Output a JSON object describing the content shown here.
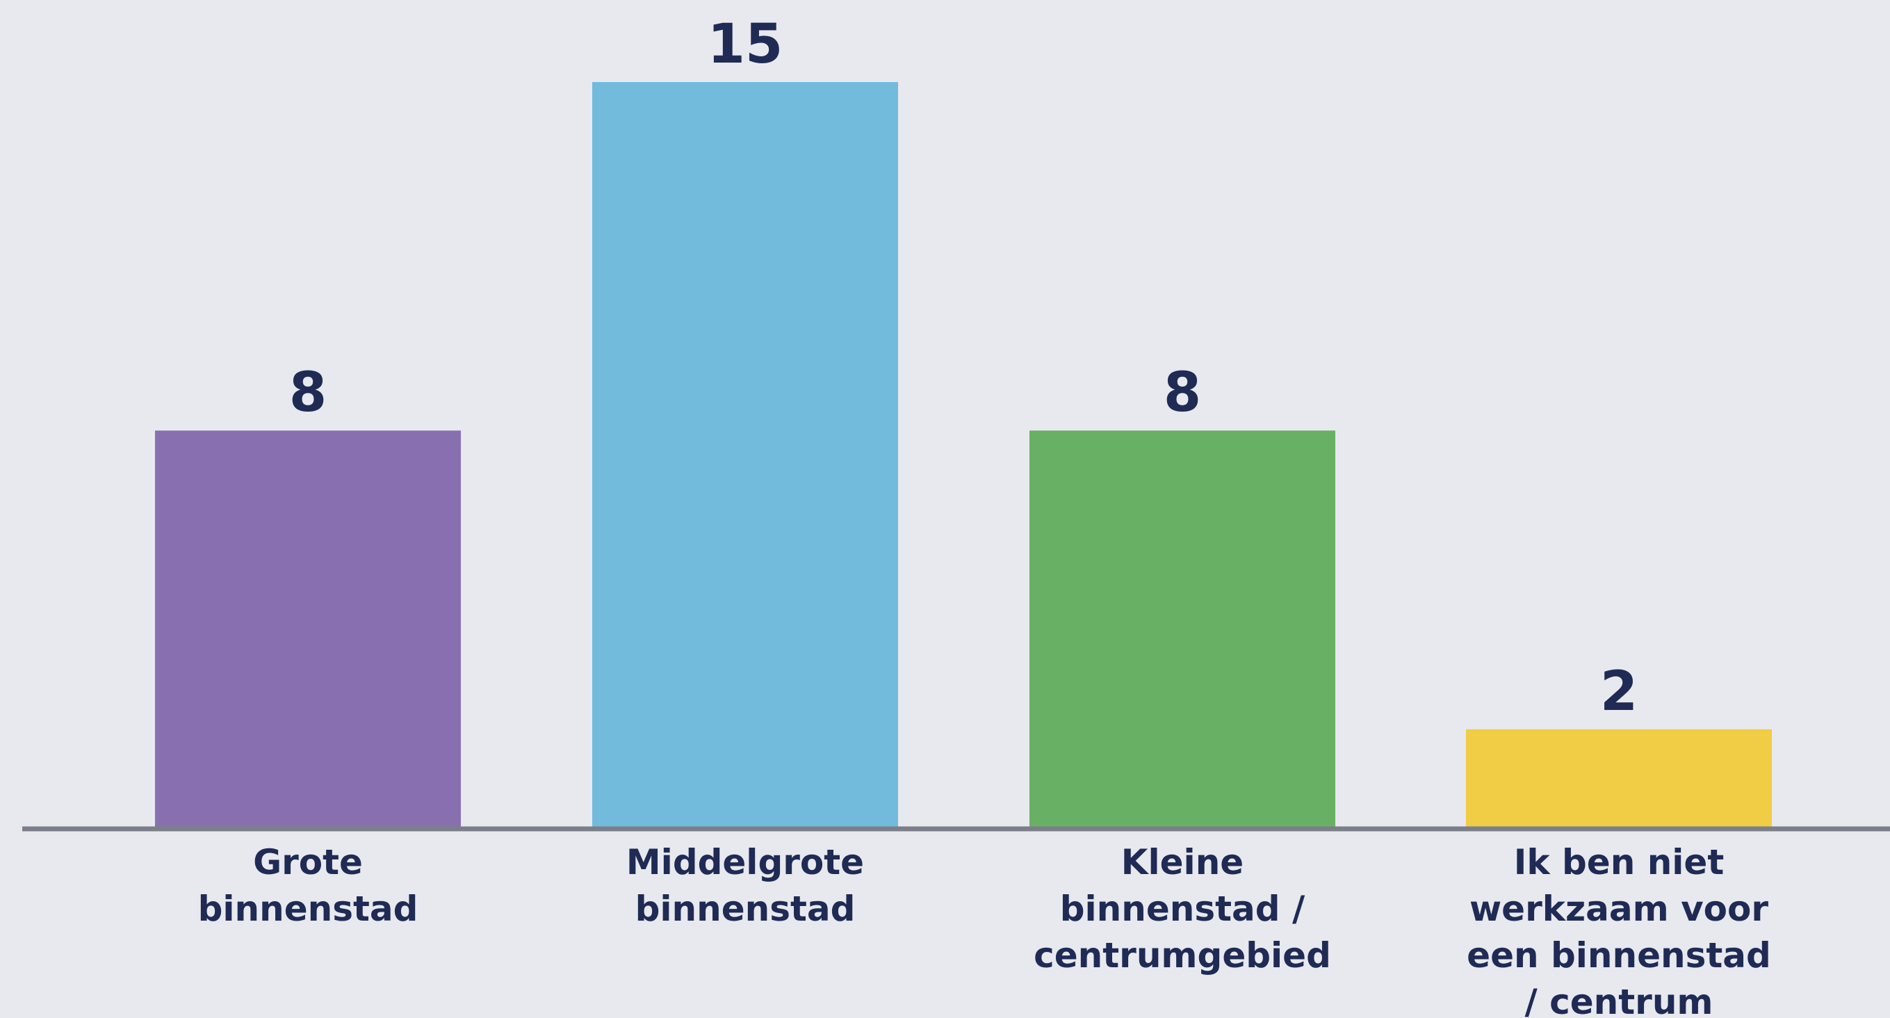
{
  "chart_data": {
    "type": "bar",
    "categories": [
      "Grote binnenstad",
      "Middelgrote binnenstad",
      "Kleine binnenstad / centrumgebied",
      "Ik ben niet werkzaam voor een binnenstad / centrum"
    ],
    "category_lines": [
      [
        "Grote",
        "binnenstad"
      ],
      [
        "Middelgrote",
        "binnenstad"
      ],
      [
        "Kleine",
        "binnenstad /",
        "centrumgebied"
      ],
      [
        "Ik ben niet",
        "werkzaam voor",
        "een binnenstad",
        "/ centrum"
      ]
    ],
    "values": [
      8,
      15,
      8,
      2
    ],
    "value_labels": [
      "8",
      "15",
      "8",
      "2"
    ],
    "colors": [
      "#8870b0",
      "#72bbdc",
      "#68b164",
      "#f1cc45"
    ],
    "ylim": [
      0,
      15
    ],
    "grid": false,
    "legend": "none",
    "axis_color": "#7b7f89",
    "text_color": "#1f2b55",
    "title": "",
    "xlabel": "",
    "ylabel": ""
  }
}
